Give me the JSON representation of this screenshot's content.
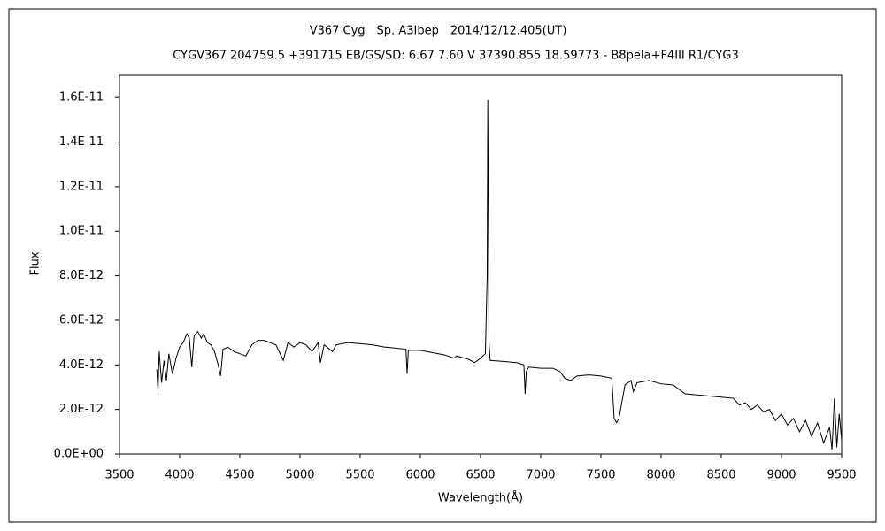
{
  "chart_data": {
    "type": "line",
    "title": "V367 Cyg　Sp. A3Ibep　2014/12/12.405(UT)",
    "subtitle": "CYGV367 204759.5 +391715 EB/GS/SD: 6.67 7.60 V 37390.855 18.59773 - B8peIa+F4III R1/CYG3",
    "x_label": "Wavelength(Å)",
    "y_label": "Flux",
    "color": "#000000",
    "xlim": [
      3500,
      9500
    ],
    "xticks": [
      3500,
      4000,
      4500,
      5000,
      5500,
      6000,
      6500,
      7000,
      7500,
      8000,
      8500,
      9000,
      9500
    ],
    "ylim": [
      0,
      1.7e-11
    ],
    "yticks": [
      {
        "value": 0,
        "label": "0.0E+00"
      },
      {
        "value": 2e-12,
        "label": "2.0E-12"
      },
      {
        "value": 4e-12,
        "label": "4.0E-12"
      },
      {
        "value": 6e-12,
        "label": "6.0E-12"
      },
      {
        "value": 8e-12,
        "label": "8.0E-12"
      },
      {
        "value": 1e-11,
        "label": "1.0E-11"
      },
      {
        "value": 1.2e-11,
        "label": "1.2E-11"
      },
      {
        "value": 1.4e-11,
        "label": "1.4E-11"
      },
      {
        "value": 1.6e-11,
        "label": "1.6E-11"
      }
    ],
    "x": [
      3810,
      3820,
      3830,
      3850,
      3870,
      3890,
      3910,
      3940,
      3970,
      4000,
      4030,
      4060,
      4080,
      4101,
      4120,
      4150,
      4180,
      4200,
      4230,
      4260,
      4290,
      4320,
      4340,
      4360,
      4400,
      4450,
      4500,
      4550,
      4600,
      4650,
      4700,
      4750,
      4800,
      4861,
      4900,
      4950,
      5000,
      5050,
      5100,
      5150,
      5170,
      5200,
      5270,
      5300,
      5400,
      5500,
      5600,
      5700,
      5800,
      5880,
      5890,
      5900,
      6000,
      6100,
      6200,
      6280,
      6300,
      6400,
      6450,
      6500,
      6540,
      6555,
      6560,
      6564,
      6570,
      6580,
      6700,
      6800,
      6860,
      6870,
      6880,
      6900,
      7000,
      7100,
      7160,
      7200,
      7250,
      7300,
      7400,
      7500,
      7590,
      7610,
      7630,
      7650,
      7680,
      7700,
      7750,
      7770,
      7800,
      7900,
      8000,
      8100,
      8200,
      8300,
      8400,
      8500,
      8600,
      8650,
      8700,
      8750,
      8800,
      8850,
      8900,
      8950,
      9000,
      9050,
      9100,
      9150,
      9200,
      9250,
      9300,
      9350,
      9400,
      9420,
      9440,
      9460,
      9480,
      9500
    ],
    "values": [
      3.8e-12,
      2.8e-12,
      4.6e-12,
      3.2e-12,
      4.2e-12,
      3.3e-12,
      4.5e-12,
      3.6e-12,
      4.3e-12,
      4.8e-12,
      5e-12,
      5.4e-12,
      5.2e-12,
      3.9e-12,
      5.3e-12,
      5.5e-12,
      5.2e-12,
      5.4e-12,
      5e-12,
      4.9e-12,
      4.6e-12,
      4e-12,
      3.5e-12,
      4.7e-12,
      4.8e-12,
      4.6e-12,
      4.5e-12,
      4.4e-12,
      4.9e-12,
      5.1e-12,
      5.1e-12,
      5e-12,
      4.9e-12,
      4.2e-12,
      5e-12,
      4.8e-12,
      5e-12,
      4.9e-12,
      4.6e-12,
      5e-12,
      4.1e-12,
      4.9e-12,
      4.6e-12,
      4.9e-12,
      5e-12,
      4.95e-12,
      4.9e-12,
      4.8e-12,
      4.75e-12,
      4.7e-12,
      3.6e-12,
      4.65e-12,
      4.65e-12,
      4.55e-12,
      4.45e-12,
      4.3e-12,
      4.4e-12,
      4.25e-12,
      4.1e-12,
      4.3e-12,
      4.5e-12,
      8e-12,
      1.59e-11,
      1.22e-11,
      5e-12,
      4.2e-12,
      4.15e-12,
      4.1e-12,
      4e-12,
      2.7e-12,
      3.7e-12,
      3.9e-12,
      3.85e-12,
      3.85e-12,
      3.7e-12,
      3.4e-12,
      3.3e-12,
      3.5e-12,
      3.55e-12,
      3.5e-12,
      3.4e-12,
      1.6e-12,
      1.4e-12,
      1.6e-12,
      2.5e-12,
      3.1e-12,
      3.3e-12,
      2.8e-12,
      3.2e-12,
      3.3e-12,
      3.15e-12,
      3.1e-12,
      2.7e-12,
      2.65e-12,
      2.6e-12,
      2.55e-12,
      2.5e-12,
      2.2e-12,
      2.3e-12,
      2e-12,
      2.2e-12,
      1.9e-12,
      2e-12,
      1.5e-12,
      1.8e-12,
      1.3e-12,
      1.6e-12,
      1e-12,
      1.5e-12,
      8e-13,
      1.4e-12,
      5e-13,
      1.2e-12,
      2e-13,
      2.5e-12,
      3e-13,
      1.8e-12,
      6e-13
    ]
  }
}
